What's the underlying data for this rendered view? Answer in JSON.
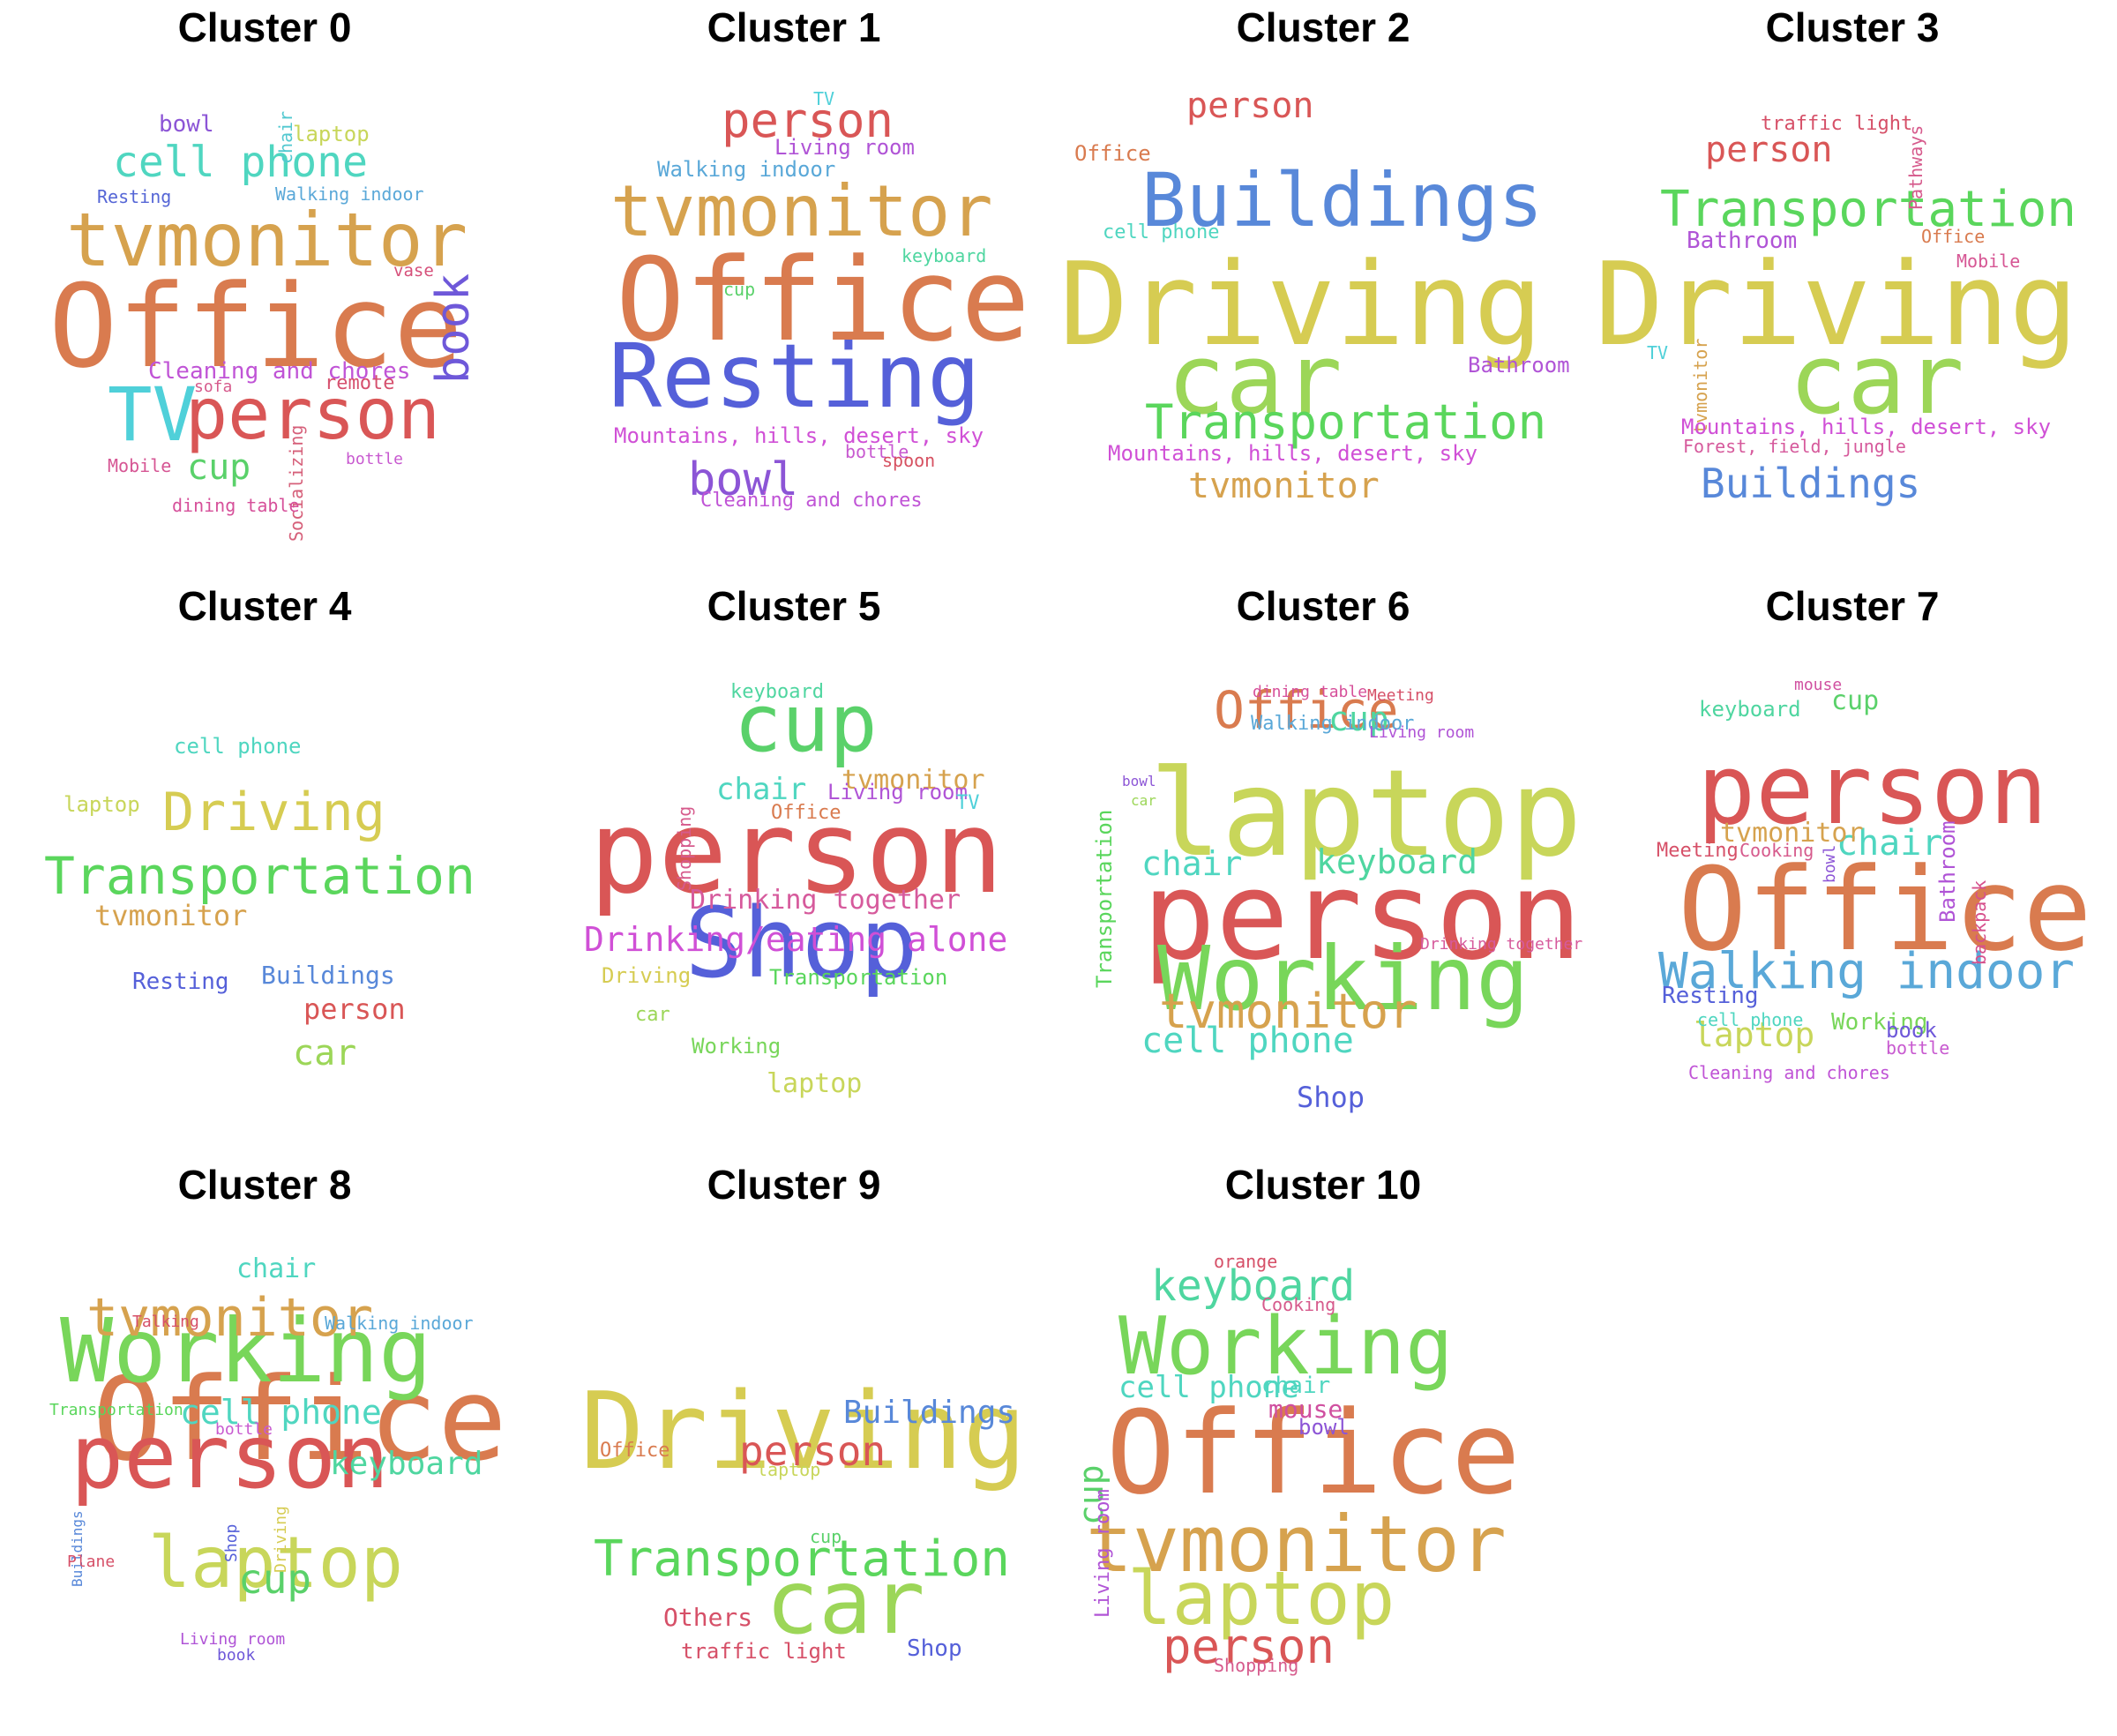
{
  "colors": {
    "background": "#ffffff",
    "title": "#000000"
  },
  "clusters": [
    {
      "title": "Cluster 0",
      "words": [
        {
          "text": "Office",
          "color": "#d97b4f"
        },
        {
          "text": "tvmonitor",
          "color": "#d6a24e"
        },
        {
          "text": "TV",
          "color": "#4fd0d9"
        },
        {
          "text": "person",
          "color": "#d95656"
        },
        {
          "text": "cell phone",
          "color": "#4fd6c0"
        },
        {
          "text": "book",
          "color": "#6e58d9"
        },
        {
          "text": "cup",
          "color": "#5ad16a"
        },
        {
          "text": "bowl",
          "color": "#8c55d6"
        },
        {
          "text": "laptop",
          "color": "#c8d65a"
        },
        {
          "text": "chair",
          "color": "#52c8d0"
        },
        {
          "text": "Walking indoor",
          "color": "#5aa8d8"
        },
        {
          "text": "Resting",
          "color": "#5566d6"
        },
        {
          "text": "vase",
          "color": "#d6507a"
        },
        {
          "text": "Cleaning and chores",
          "color": "#c054d6"
        },
        {
          "text": "sofa",
          "color": "#d65a8c"
        },
        {
          "text": "remote",
          "color": "#d6506e"
        },
        {
          "text": "Mobile",
          "color": "#d65694"
        },
        {
          "text": "bottle",
          "color": "#c85ad0"
        },
        {
          "text": "Socializing",
          "color": "#d6607a"
        },
        {
          "text": "dining table",
          "color": "#d6509a"
        }
      ]
    },
    {
      "title": "Cluster 1",
      "words": [
        {
          "text": "Office",
          "color": "#d97b4f"
        },
        {
          "text": "Resting",
          "color": "#5560d9"
        },
        {
          "text": "tvmonitor",
          "color": "#d6a24e"
        },
        {
          "text": "person",
          "color": "#d95656"
        },
        {
          "text": "bowl",
          "color": "#8c55d6"
        },
        {
          "text": "TV",
          "color": "#4fd0d9"
        },
        {
          "text": "Living room",
          "color": "#b054d6"
        },
        {
          "text": "Walking indoor",
          "color": "#5aa8d8"
        },
        {
          "text": "keyboard",
          "color": "#4fd6a0"
        },
        {
          "text": "cup",
          "color": "#5ad16a"
        },
        {
          "text": "Mountains, hills, desert, sky",
          "color": "#d050d6"
        },
        {
          "text": "bottle",
          "color": "#c85ad0"
        },
        {
          "text": "spoon",
          "color": "#d65060"
        },
        {
          "text": "Cleaning and chores",
          "color": "#c054d6"
        }
      ]
    },
    {
      "title": "Cluster 2",
      "words": [
        {
          "text": "Driving",
          "color": "#d6cc52"
        },
        {
          "text": "car",
          "color": "#9cd658"
        },
        {
          "text": "Buildings",
          "color": "#5888d9"
        },
        {
          "text": "Transportation",
          "color": "#5ad65c"
        },
        {
          "text": "person",
          "color": "#d95656"
        },
        {
          "text": "Office",
          "color": "#d97b4f"
        },
        {
          "text": "cell phone",
          "color": "#4fd6c0"
        },
        {
          "text": "Bathroom",
          "color": "#b054d6"
        },
        {
          "text": "Mountains, hills, desert, sky",
          "color": "#d050d6"
        },
        {
          "text": "tvmonitor",
          "color": "#d6a24e"
        }
      ]
    },
    {
      "title": "Cluster 3",
      "words": [
        {
          "text": "Driving",
          "color": "#d6cc52"
        },
        {
          "text": "car",
          "color": "#9cd658"
        },
        {
          "text": "Transportation",
          "color": "#5ad65c"
        },
        {
          "text": "Buildings",
          "color": "#5888d9"
        },
        {
          "text": "person",
          "color": "#d95656"
        },
        {
          "text": "traffic light",
          "color": "#d65068"
        },
        {
          "text": "Pathways",
          "color": "#d65a8c"
        },
        {
          "text": "Bathroom",
          "color": "#b054d6"
        },
        {
          "text": "Office",
          "color": "#d97b4f"
        },
        {
          "text": "Mobile",
          "color": "#d65694"
        },
        {
          "text": "TV",
          "color": "#4fd0d9"
        },
        {
          "text": "tvmonitor",
          "color": "#d6a24e"
        },
        {
          "text": "Mountains, hills, desert, sky",
          "color": "#d050d6"
        },
        {
          "text": "Forest, field, jungle",
          "color": "#d65a9c"
        }
      ]
    },
    {
      "title": "Cluster 4",
      "words": [
        {
          "text": "Transportation",
          "color": "#5ad65c"
        },
        {
          "text": "Driving",
          "color": "#d6cc52"
        },
        {
          "text": "cell phone",
          "color": "#4fd6c0"
        },
        {
          "text": "laptop",
          "color": "#c8d65a"
        },
        {
          "text": "tvmonitor",
          "color": "#d6a24e"
        },
        {
          "text": "Resting",
          "color": "#5560d9"
        },
        {
          "text": "Buildings",
          "color": "#5888d9"
        },
        {
          "text": "person",
          "color": "#d95656"
        },
        {
          "text": "car",
          "color": "#9cd658"
        }
      ]
    },
    {
      "title": "Cluster 5",
      "words": [
        {
          "text": "person",
          "color": "#d95656"
        },
        {
          "text": "Shop",
          "color": "#5560d9"
        },
        {
          "text": "cup",
          "color": "#5ad16a"
        },
        {
          "text": "keyboard",
          "color": "#4fd6a0"
        },
        {
          "text": "Shopping",
          "color": "#d65a8c"
        },
        {
          "text": "chair",
          "color": "#4fd6c0"
        },
        {
          "text": "tvmonitor",
          "color": "#d6a24e"
        },
        {
          "text": "Living room",
          "color": "#b054d6"
        },
        {
          "text": "TV",
          "color": "#4fd0d9"
        },
        {
          "text": "Office",
          "color": "#d97b4f"
        },
        {
          "text": "Drinking together",
          "color": "#d65a9c"
        },
        {
          "text": "Drinking/eating alone",
          "color": "#d050d6"
        },
        {
          "text": "Driving",
          "color": "#d6cc52"
        },
        {
          "text": "Transportation",
          "color": "#5ad65c"
        },
        {
          "text": "car",
          "color": "#9cd658"
        },
        {
          "text": "Working",
          "color": "#78d65a"
        },
        {
          "text": "laptop",
          "color": "#c8d65a"
        }
      ]
    },
    {
      "title": "Cluster 6",
      "words": [
        {
          "text": "laptop",
          "color": "#c8d65a"
        },
        {
          "text": "person",
          "color": "#d95656"
        },
        {
          "text": "Working",
          "color": "#78d65a"
        },
        {
          "text": "Office",
          "color": "#d97b4f"
        },
        {
          "text": "tvmonitor",
          "color": "#d6a24e"
        },
        {
          "text": "cell phone",
          "color": "#4fd6c0"
        },
        {
          "text": "cup",
          "color": "#4fd6a0"
        },
        {
          "text": "chair",
          "color": "#4fd6c0"
        },
        {
          "text": "keyboard",
          "color": "#4fd6a0"
        },
        {
          "text": "dining table",
          "color": "#d6509a"
        },
        {
          "text": "Meeting",
          "color": "#d65068"
        },
        {
          "text": "Walking indoor",
          "color": "#5aa8d8"
        },
        {
          "text": "Living room",
          "color": "#b054d6"
        },
        {
          "text": "bowl",
          "color": "#8c55d6"
        },
        {
          "text": "car",
          "color": "#9cd658"
        },
        {
          "text": "Transportation",
          "color": "#5ad65c"
        },
        {
          "text": "Drinking together",
          "color": "#d65a9c"
        },
        {
          "text": "Shop",
          "color": "#5560d9"
        }
      ]
    },
    {
      "title": "Cluster 7",
      "words": [
        {
          "text": "Office",
          "color": "#d97b4f"
        },
        {
          "text": "person",
          "color": "#d95656"
        },
        {
          "text": "Walking indoor",
          "color": "#5aa8d8"
        },
        {
          "text": "chair",
          "color": "#4fd6c0"
        },
        {
          "text": "laptop",
          "color": "#c8d65a"
        },
        {
          "text": "keyboard",
          "color": "#4fd6a0"
        },
        {
          "text": "cup",
          "color": "#5ad16a"
        },
        {
          "text": "mouse",
          "color": "#d050a0"
        },
        {
          "text": "tvmonitor",
          "color": "#d6a24e"
        },
        {
          "text": "Meeting",
          "color": "#d65068"
        },
        {
          "text": "Cooking",
          "color": "#d65a8c"
        },
        {
          "text": "bowl",
          "color": "#8c55d6"
        },
        {
          "text": "Bathroom",
          "color": "#b054d6"
        },
        {
          "text": "backpack",
          "color": "#d6508c"
        },
        {
          "text": "Resting",
          "color": "#5560d9"
        },
        {
          "text": "cell phone",
          "color": "#4fd6c0"
        },
        {
          "text": "Working",
          "color": "#78d65a"
        },
        {
          "text": "book",
          "color": "#6e58d9"
        },
        {
          "text": "bottle",
          "color": "#c85ad0"
        },
        {
          "text": "Cleaning and chores",
          "color": "#c054d6"
        }
      ]
    },
    {
      "title": "Cluster 8",
      "words": [
        {
          "text": "Office",
          "color": "#d97b4f"
        },
        {
          "text": "Working",
          "color": "#78d65a"
        },
        {
          "text": "person",
          "color": "#d95656"
        },
        {
          "text": "laptop",
          "color": "#c8d65a"
        },
        {
          "text": "tvmonitor",
          "color": "#d6a24e"
        },
        {
          "text": "cell phone",
          "color": "#4fd6c0"
        },
        {
          "text": "keyboard",
          "color": "#4fd6a0"
        },
        {
          "text": "cup",
          "color": "#5ad16a"
        },
        {
          "text": "chair",
          "color": "#4fd6c0"
        },
        {
          "text": "Talking",
          "color": "#d65068"
        },
        {
          "text": "Walking indoor",
          "color": "#5aa8d8"
        },
        {
          "text": "Transportation",
          "color": "#5ad65c"
        },
        {
          "text": "bottle",
          "color": "#c85ad0"
        },
        {
          "text": "Buildings",
          "color": "#5888d9"
        },
        {
          "text": "Shop",
          "color": "#5560d9"
        },
        {
          "text": "Driving",
          "color": "#d6cc52"
        },
        {
          "text": "Plane",
          "color": "#d65068"
        },
        {
          "text": "Living room",
          "color": "#b054d6"
        },
        {
          "text": "book",
          "color": "#6e58d9"
        }
      ]
    },
    {
      "title": "Cluster 9",
      "words": [
        {
          "text": "Driving",
          "color": "#d6cc52"
        },
        {
          "text": "car",
          "color": "#9cd658"
        },
        {
          "text": "Transportation",
          "color": "#5ad65c"
        },
        {
          "text": "person",
          "color": "#d95656"
        },
        {
          "text": "Buildings",
          "color": "#5888d9"
        },
        {
          "text": "Office",
          "color": "#d97b4f"
        },
        {
          "text": "cup",
          "color": "#5ad16a"
        },
        {
          "text": "laptop",
          "color": "#c8d65a"
        },
        {
          "text": "Others",
          "color": "#d65068"
        },
        {
          "text": "traffic light",
          "color": "#d65068"
        },
        {
          "text": "Shop",
          "color": "#5560d9"
        }
      ]
    },
    {
      "title": "Cluster 10",
      "words": [
        {
          "text": "Office",
          "color": "#d97b4f"
        },
        {
          "text": "tvmonitor",
          "color": "#d6a24e"
        },
        {
          "text": "Working",
          "color": "#78d65a"
        },
        {
          "text": "laptop",
          "color": "#c8d65a"
        },
        {
          "text": "keyboard",
          "color": "#4fd6a0"
        },
        {
          "text": "person",
          "color": "#d95656"
        },
        {
          "text": "cell phone",
          "color": "#4fd6c0"
        },
        {
          "text": "chair",
          "color": "#4fd6c0"
        },
        {
          "text": "mouse",
          "color": "#d050a0"
        },
        {
          "text": "bowl",
          "color": "#8c55d6"
        },
        {
          "text": "cup",
          "color": "#5ad16a"
        },
        {
          "text": "Living room",
          "color": "#b054d6"
        },
        {
          "text": "orange",
          "color": "#d65068"
        },
        {
          "text": "Cooking",
          "color": "#d65a8c"
        },
        {
          "text": "Shopping",
          "color": "#d65a8c"
        }
      ]
    }
  ]
}
